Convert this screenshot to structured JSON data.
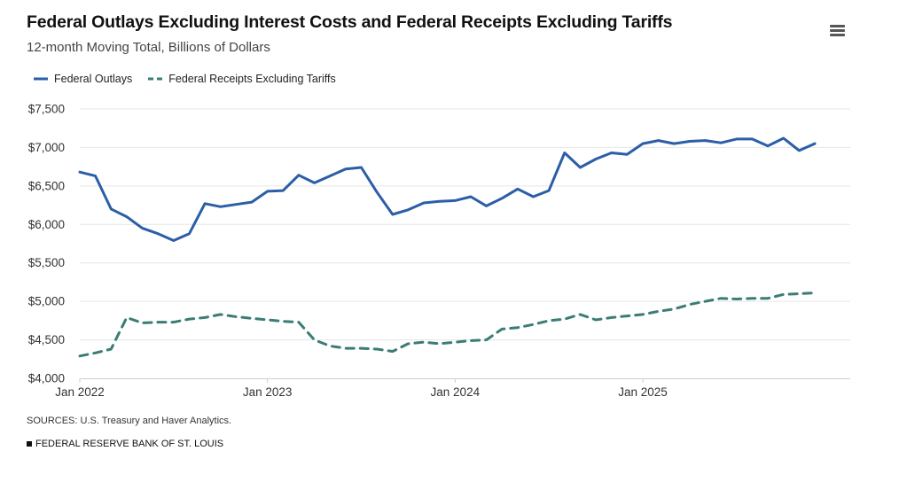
{
  "header": {
    "title": "Federal Outlays Excluding Interest Costs and Federal Receipts Excluding Tariffs",
    "subtitle": "12-month Moving Total, Billions of Dollars",
    "menu_icon": "hamburger-menu-icon"
  },
  "footer": {
    "sources": "SOURCES: U.S. Treasury and Haver Analytics.",
    "brand": "FEDERAL RESERVE BANK OF ST. LOUIS"
  },
  "chart_data": {
    "type": "line",
    "title": "Federal Outlays Excluding Interest Costs and Federal Receipts Excluding Tariffs",
    "subtitle": "12-month Moving Total, Billions of Dollars",
    "x_labels": [
      {
        "label": "Jan 2022",
        "month_index": 0
      },
      {
        "label": "Jan 2023",
        "month_index": 12
      },
      {
        "label": "Jan 2024",
        "month_index": 24
      },
      {
        "label": "Jan 2025",
        "month_index": 36
      }
    ],
    "y_ticks": [
      4000,
      4500,
      5000,
      5500,
      6000,
      6500,
      7000,
      7500
    ],
    "y_tick_labels": [
      "$4,000",
      "$4,500",
      "$5,000",
      "$5,500",
      "$6,000",
      "$6,500",
      "$7,000",
      "$7,500"
    ],
    "ylim": [
      4000,
      7500
    ],
    "grid": true,
    "legend_position": "top-left",
    "x": [
      "2022-01",
      "2022-02",
      "2022-03",
      "2022-04",
      "2022-05",
      "2022-06",
      "2022-07",
      "2022-08",
      "2022-09",
      "2022-10",
      "2022-11",
      "2022-12",
      "2023-01",
      "2023-02",
      "2023-03",
      "2023-04",
      "2023-05",
      "2023-06",
      "2023-07",
      "2023-08",
      "2023-09",
      "2023-10",
      "2023-11",
      "2023-12",
      "2024-01",
      "2024-02",
      "2024-03",
      "2024-04",
      "2024-05",
      "2024-06",
      "2024-07",
      "2024-08",
      "2024-09",
      "2024-10",
      "2024-11",
      "2024-12",
      "2025-01",
      "2025-02",
      "2025-03",
      "2025-04",
      "2025-05",
      "2025-06",
      "2025-07",
      "2025-08",
      "2025-09",
      "2025-10",
      "2025-11",
      "2025-12"
    ],
    "series": [
      {
        "name": "Federal Outlays",
        "color": "#2b5ea7",
        "dash": "solid",
        "values": [
          6680,
          6630,
          6200,
          6100,
          5950,
          5880,
          5790,
          5880,
          6270,
          6230,
          6260,
          6290,
          6430,
          6440,
          6640,
          6540,
          6630,
          6720,
          6740,
          6420,
          6130,
          6190,
          6280,
          6300,
          6310,
          6360,
          6240,
          6340,
          6460,
          6360,
          6440,
          6930,
          6740,
          6850,
          6930,
          6910,
          7050,
          7090,
          7050,
          7080,
          7090,
          7060,
          7110,
          7110,
          7020,
          7120,
          6960,
          7050
        ]
      },
      {
        "name": "Federal Receipts Excluding Tariffs",
        "color": "#3a7d75",
        "dash": "dashed",
        "values": [
          4290,
          4330,
          4380,
          4790,
          4720,
          4730,
          4730,
          4770,
          4790,
          4830,
          4800,
          4780,
          4760,
          4740,
          4730,
          4500,
          4420,
          4390,
          4390,
          4380,
          4350,
          4450,
          4470,
          4450,
          4470,
          4490,
          4500,
          4640,
          4660,
          4700,
          4750,
          4770,
          4830,
          4760,
          4790,
          4810,
          4830,
          4870,
          4900,
          4960,
          5000,
          5040,
          5030,
          5040,
          5040,
          5090,
          5100,
          5110
        ]
      }
    ]
  }
}
